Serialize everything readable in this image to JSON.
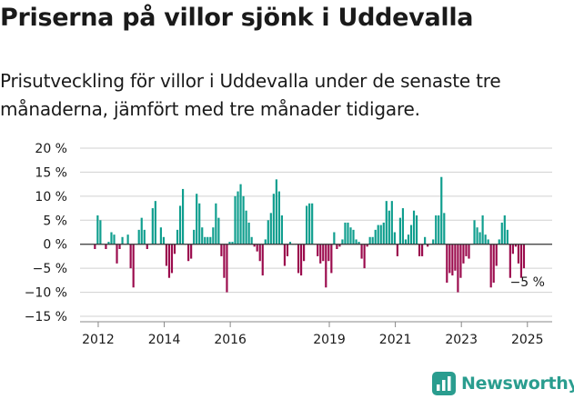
{
  "header": {
    "title": "Priserna på villor sjönk i Uddevalla",
    "subtitle": "Prisutveckling för villor i Uddevalla under de senaste tre månaderna, jämfört med tre månader tidigare."
  },
  "brand": {
    "name": "Newsworthy",
    "logo_icon": "newsworthy-bar-chart-icon"
  },
  "colors": {
    "positive": "#0f9e8e",
    "negative": "#9b0b4d",
    "grid": "#d0d0d0",
    "text": "#1a1a1a",
    "brand": "#2a9d8f"
  },
  "chart_data": {
    "type": "bar",
    "title": "Priserna på villor sjönk i Uddevalla",
    "xlabel": "",
    "ylabel": "",
    "ylim": [
      -15,
      20
    ],
    "yticks": [
      20,
      15,
      10,
      5,
      0,
      -5,
      -10,
      -15
    ],
    "ytick_labels": [
      "20 %",
      "15 %",
      "10 %",
      "5 %",
      "0 %",
      "−5 %",
      "−10 %",
      "−15 %"
    ],
    "xticks": [
      2012,
      2014,
      2016,
      2019,
      2021,
      2023,
      2025
    ],
    "xtick_labels": [
      "2012",
      "2014",
      "2016",
      "2019",
      "2021",
      "2023",
      "2025"
    ],
    "x_start": 2011.9,
    "x_step": 0.0833,
    "values": [
      -1,
      6,
      5,
      0,
      -1,
      0.5,
      2.5,
      2,
      -4,
      -1,
      1.5,
      0,
      2,
      -5,
      -9,
      0,
      3,
      5.5,
      3,
      -1,
      0,
      7.5,
      9,
      0,
      3.5,
      1.5,
      -4.5,
      -7,
      -6,
      -2,
      3,
      8,
      11.5,
      0,
      -3.5,
      -3,
      3,
      10.5,
      8.5,
      3.5,
      1.5,
      1.5,
      1.5,
      3.5,
      8.5,
      5.5,
      -2.5,
      -7,
      -10,
      0.5,
      0.5,
      10,
      11,
      12.5,
      10,
      7,
      4.5,
      1.5,
      -0.5,
      -1.5,
      -3.5,
      -6.5,
      1,
      5,
      6.5,
      10.5,
      13.5,
      11,
      6,
      -4.5,
      -2.5,
      0.5,
      0,
      0,
      -6,
      -6.5,
      -3.5,
      8,
      8.5,
      8.5,
      0,
      -2.5,
      -4,
      -3.5,
      -9,
      -3.5,
      -6,
      2.5,
      -1,
      -0.5,
      1,
      4.5,
      4.5,
      3.5,
      3,
      1,
      0.5,
      -3,
      -5,
      -0.5,
      1.5,
      1.5,
      3,
      4,
      4,
      4.5,
      9,
      7,
      9,
      2.5,
      -2.5,
      5.5,
      7.5,
      1,
      2,
      4,
      7,
      6,
      -2.5,
      -2.5,
      1.5,
      -0.5,
      0,
      1,
      6,
      6,
      14,
      6.5,
      -8,
      -6,
      -6.5,
      -5.5,
      -10,
      -7,
      -4,
      -2.5,
      -3,
      0,
      5,
      3.5,
      2.5,
      6,
      2,
      1,
      -9,
      -8,
      -4.5,
      1,
      4.5,
      6,
      3,
      -7,
      -2,
      -0.5,
      -4,
      -7,
      -5
    ],
    "annotation": {
      "text": "−5 %",
      "target": "last-bar"
    }
  }
}
